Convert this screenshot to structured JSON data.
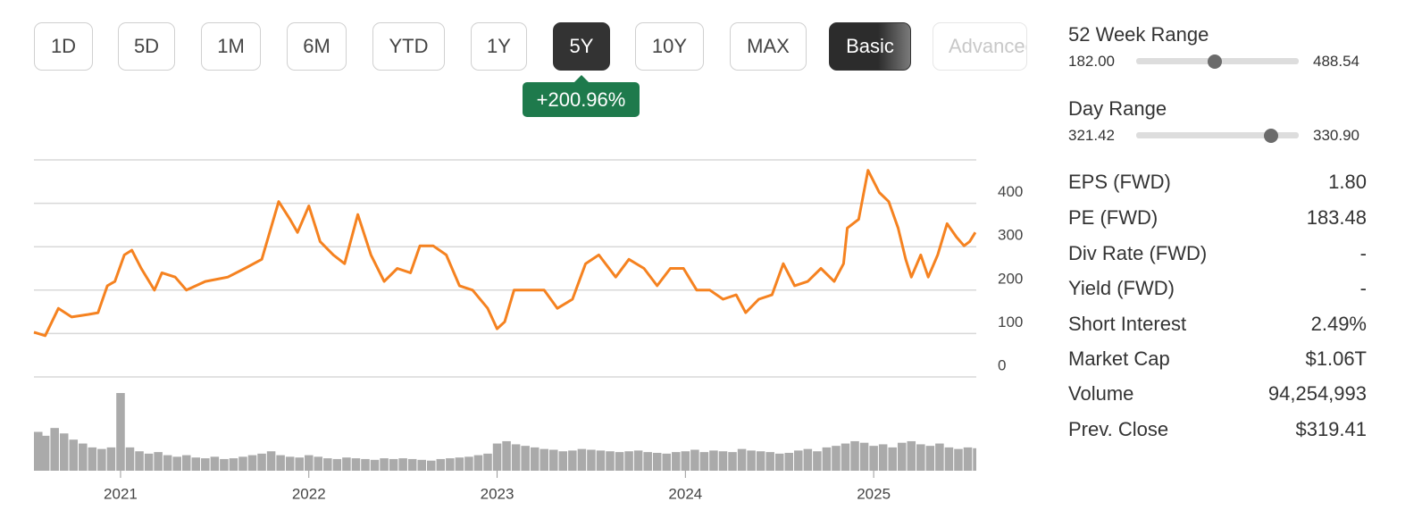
{
  "range_buttons": [
    {
      "label": "1D"
    },
    {
      "label": "5D"
    },
    {
      "label": "1M"
    },
    {
      "label": "6M"
    },
    {
      "label": "YTD"
    },
    {
      "label": "1Y"
    },
    {
      "label": "5Y",
      "active": true
    },
    {
      "label": "10Y"
    },
    {
      "label": "MAX"
    }
  ],
  "view_buttons": [
    {
      "label": "Basic",
      "active": true
    },
    {
      "label": "Advanced",
      "disabled": true
    }
  ],
  "change_badge": "+200.96%",
  "chart_data": [
    {
      "type": "line",
      "color": "#f58220",
      "grid": true,
      "x": [
        2020.54,
        2020.6,
        2020.67,
        2020.74,
        2020.83,
        2020.88,
        2020.93,
        2020.97,
        2021.02,
        2021.06,
        2021.11,
        2021.18,
        2021.22,
        2021.29,
        2021.35,
        2021.45,
        2021.57,
        2021.66,
        2021.75,
        2021.84,
        2021.9,
        2021.94,
        2022.0,
        2022.06,
        2022.13,
        2022.19,
        2022.26,
        2022.33,
        2022.4,
        2022.47,
        2022.54,
        2022.59,
        2022.66,
        2022.73,
        2022.8,
        2022.87,
        2022.95,
        2023.0,
        2023.04,
        2023.09,
        2023.16,
        2023.25,
        2023.32,
        2023.4,
        2023.47,
        2023.54,
        2023.63,
        2023.7,
        2023.78,
        2023.85,
        2023.92,
        2023.99,
        2024.06,
        2024.13,
        2024.2,
        2024.27,
        2024.32,
        2024.39,
        2024.46,
        2024.52,
        2024.58,
        2024.65,
        2024.72,
        2024.79,
        2024.84,
        2024.86,
        2024.92,
        2024.97,
        2025.03,
        2025.08,
        2025.13,
        2025.17,
        2025.2,
        2025.25,
        2025.29,
        2025.34,
        2025.39,
        2025.44,
        2025.48,
        2025.51,
        2025.54
      ],
      "values": [
        103,
        95,
        158,
        138,
        144,
        148,
        210,
        220,
        281,
        292,
        250,
        200,
        240,
        230,
        200,
        220,
        230,
        250,
        271,
        404,
        363,
        333,
        394,
        312,
        281,
        261,
        374,
        281,
        220,
        250,
        240,
        302,
        302,
        281,
        210,
        200,
        158,
        111,
        127,
        200,
        200,
        200,
        158,
        179,
        261,
        281,
        230,
        271,
        250,
        210,
        250,
        250,
        200,
        200,
        179,
        189,
        148,
        179,
        189,
        261,
        210,
        220,
        250,
        220,
        261,
        343,
        363,
        476,
        425,
        404,
        343,
        271,
        230,
        281,
        230,
        281,
        353,
        322,
        302,
        312,
        333
      ],
      "xlim": [
        2020.54,
        2025.545
      ],
      "ylim": [
        0,
        500
      ],
      "yticks": [
        0,
        100,
        200,
        300,
        400
      ]
    },
    {
      "type": "bar",
      "color": "#aaaaaa",
      "x": [
        2020.55,
        2020.6,
        2020.65,
        2020.7,
        2020.75,
        2020.8,
        2020.85,
        2020.9,
        2020.95,
        2021.0,
        2021.05,
        2021.1,
        2021.15,
        2021.2,
        2021.25,
        2021.3,
        2021.35,
        2021.4,
        2021.45,
        2021.5,
        2021.55,
        2021.6,
        2021.65,
        2021.7,
        2021.75,
        2021.8,
        2021.85,
        2021.9,
        2021.95,
        2022.0,
        2022.05,
        2022.1,
        2022.15,
        2022.2,
        2022.25,
        2022.3,
        2022.35,
        2022.4,
        2022.45,
        2022.5,
        2022.55,
        2022.6,
        2022.65,
        2022.7,
        2022.75,
        2022.8,
        2022.85,
        2022.9,
        2022.95,
        2023.0,
        2023.05,
        2023.1,
        2023.15,
        2023.2,
        2023.25,
        2023.3,
        2023.35,
        2023.4,
        2023.45,
        2023.5,
        2023.55,
        2023.6,
        2023.65,
        2023.7,
        2023.75,
        2023.8,
        2023.85,
        2023.9,
        2023.95,
        2024.0,
        2024.05,
        2024.1,
        2024.15,
        2024.2,
        2024.25,
        2024.3,
        2024.35,
        2024.4,
        2024.45,
        2024.5,
        2024.55,
        2024.6,
        2024.65,
        2024.7,
        2024.75,
        2024.8,
        2024.85,
        2024.9,
        2024.95,
        2025.0,
        2025.05,
        2025.1,
        2025.15,
        2025.2,
        2025.25,
        2025.3,
        2025.35,
        2025.4,
        2025.45,
        2025.5,
        2025.55
      ],
      "values": [
        50,
        45,
        55,
        48,
        40,
        35,
        30,
        28,
        30,
        100,
        30,
        25,
        22,
        24,
        20,
        18,
        20,
        17,
        16,
        18,
        15,
        16,
        18,
        20,
        22,
        25,
        20,
        18,
        17,
        20,
        18,
        16,
        15,
        17,
        16,
        15,
        14,
        16,
        15,
        16,
        15,
        14,
        13,
        15,
        16,
        17,
        18,
        20,
        22,
        35,
        38,
        34,
        32,
        30,
        28,
        27,
        25,
        26,
        28,
        27,
        26,
        25,
        24,
        25,
        26,
        24,
        23,
        22,
        24,
        25,
        27,
        24,
        26,
        25,
        24,
        28,
        26,
        25,
        24,
        22,
        23,
        26,
        28,
        25,
        30,
        32,
        35,
        38,
        36,
        32,
        34,
        30,
        36,
        38,
        34,
        32,
        35,
        30,
        28,
        30,
        29
      ],
      "xlim": [
        2020.54,
        2025.545
      ],
      "ylim": [
        0,
        100
      ],
      "xticks": [
        2021,
        2022,
        2023,
        2024,
        2025
      ]
    }
  ],
  "stats": {
    "week52_range": {
      "label": "52 Week Range",
      "low": "182.00",
      "high": "488.54",
      "marker": 329.4
    },
    "day_range": {
      "label": "Day Range",
      "low": "321.42",
      "high": "330.90",
      "marker": 329.3
    },
    "rows": [
      [
        "EPS (FWD)",
        "1.80"
      ],
      [
        "PE (FWD)",
        "183.48"
      ],
      [
        "Div Rate (FWD)",
        "-"
      ],
      [
        "Yield (FWD)",
        "-"
      ],
      [
        "Short Interest",
        "2.49%"
      ],
      [
        "Market Cap",
        "$1.06T"
      ],
      [
        "Volume",
        "94,254,993"
      ],
      [
        "Prev. Close",
        "$319.41"
      ]
    ]
  }
}
